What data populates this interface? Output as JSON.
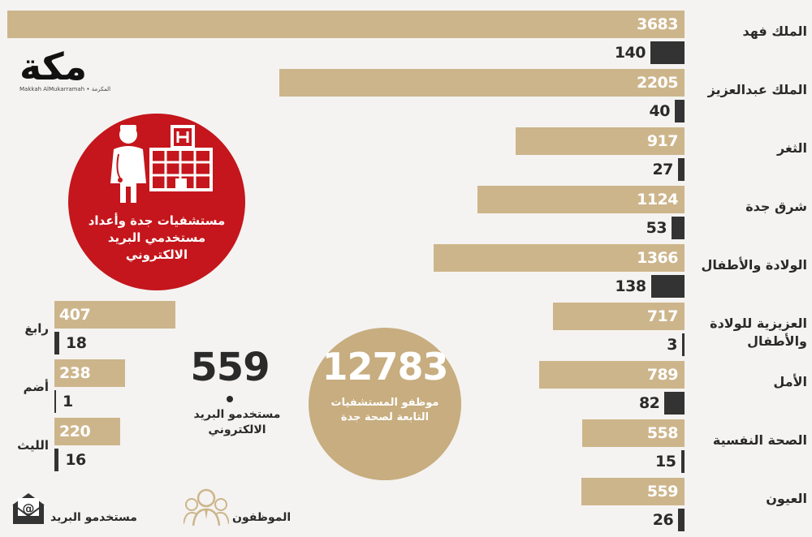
{
  "logo": {
    "name": "مكة",
    "subtitle": "Makkah AlMukarramah • المكرمة"
  },
  "title": "مستشفيات جدة وأعداد مستخدمي البريد الالكتروني",
  "total": {
    "value": "12783",
    "caption": "موظفو المستشفيات التابعة لصحة جدة"
  },
  "email_total": {
    "value": "559",
    "caption": "مستخدمو البريد الالكتروني"
  },
  "legend": {
    "email_users": "مستخدمو البريد",
    "employees": "الموظفون"
  },
  "colors": {
    "employees": "#cdb58b",
    "email_users": "#333333",
    "accent_red": "#c4161c"
  },
  "chart_data": [
    {
      "type": "bar",
      "orientation": "horizontal",
      "categories": [
        "الملك فهد",
        "الملك عبدالعزيز",
        "الثغر",
        "شرق جدة",
        "الولادة والأطفال",
        "العزيزية للولادة والأطفال",
        "الأمل",
        "الصحة النفسية",
        "العيون"
      ],
      "series": [
        {
          "name": "الموظفون",
          "values": [
            3683,
            2205,
            917,
            1124,
            1366,
            717,
            789,
            558,
            559
          ]
        },
        {
          "name": "مستخدمو البريد",
          "values": [
            140,
            40,
            27,
            53,
            138,
            3,
            82,
            15,
            26
          ]
        }
      ],
      "title": "مستشفيات جدة وأعداد مستخدمي البريد الالكتروني",
      "legend": "bottom-left",
      "grid": false
    },
    {
      "type": "bar",
      "orientation": "horizontal",
      "categories": [
        "رابغ",
        "أضم",
        "الليث"
      ],
      "series": [
        {
          "name": "الموظفون",
          "values": [
            407,
            238,
            220
          ]
        },
        {
          "name": "مستخدمو البريد",
          "values": [
            18,
            1,
            16
          ]
        }
      ],
      "grid": false
    }
  ]
}
